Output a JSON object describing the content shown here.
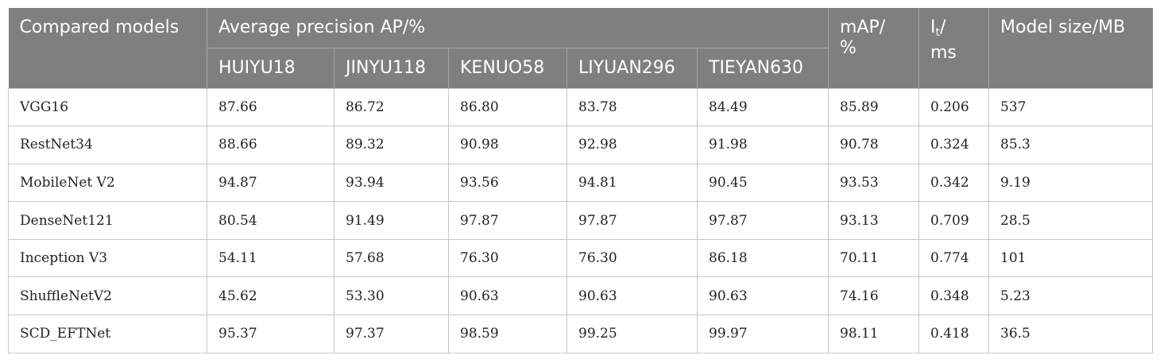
{
  "table": {
    "header": {
      "compared_models": "Compared models",
      "ap_group": "Average precision AP/%",
      "map_line1": "mAP/",
      "map_line2": "%",
      "it_base": "I",
      "it_sub": "t",
      "it_slash": "/",
      "it_line2": "ms",
      "model_size": "Model size/MB",
      "sub_columns": [
        "HUIYU18",
        "JINYU118",
        "KENUO58",
        "LIYUAN296",
        "TIEYAN630"
      ]
    },
    "rows": [
      [
        "VGG16",
        "87.66",
        "86.72",
        "86.80",
        "83.78",
        "84.49",
        "85.89",
        "0.206",
        "537"
      ],
      [
        "RestNet34",
        "88.66",
        "89.32",
        "90.98",
        "92.98",
        "91.98",
        "90.78",
        "0.324",
        "85.3"
      ],
      [
        "MobileNet V2",
        "94.87",
        "93.94",
        "93.56",
        "94.81",
        "90.45",
        "93.53",
        "0.342",
        "9.19"
      ],
      [
        "DenseNet121",
        "80.54",
        "91.49",
        "97.87",
        "97.87",
        "97.87",
        "93.13",
        "0.709",
        "28.5"
      ],
      [
        "Inception V3",
        "54.11",
        "57.68",
        "76.30",
        "76.30",
        "86.18",
        "70.11",
        "0.774",
        "101"
      ],
      [
        "ShuffleNetV2",
        "45.62",
        "53.30",
        "90.63",
        "90.63",
        "90.63",
        "74.16",
        "0.348",
        "5.23"
      ],
      [
        "SCD_EFTNet",
        "95.37",
        "97.37",
        "98.59",
        "99.25",
        "99.97",
        "98.11",
        "0.418",
        "36.5"
      ]
    ]
  }
}
